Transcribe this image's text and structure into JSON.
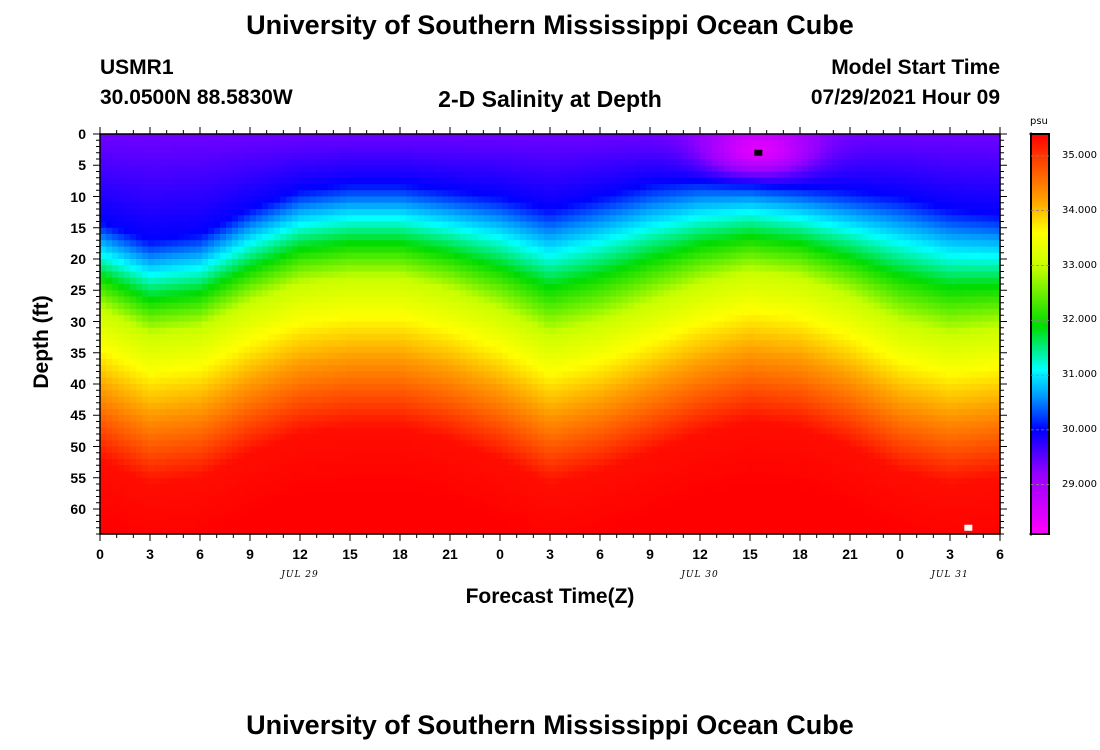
{
  "header": {
    "title_top": "University of Southern Mississippi Ocean Cube",
    "title_bottom": "University of Southern Mississippi Ocean Cube",
    "station": "USMR1",
    "location": "30.0500N  88.5830W",
    "subtitle": "2-D Salinity at Depth",
    "model_label": "Model Start Time",
    "model_time": "07/29/2021 Hour 09"
  },
  "chart_data": {
    "type": "heatmap",
    "title": "2-D Salinity at Depth",
    "xlabel": "Forecast Time(Z)",
    "ylabel": "Depth (ft)",
    "x_range_hours": [
      0,
      54
    ],
    "y_range_ft": [
      0,
      64
    ],
    "x_tick_labels": [
      "0",
      "3",
      "6",
      "9",
      "12",
      "15",
      "18",
      "21",
      "0",
      "3",
      "6",
      "9",
      "12",
      "15",
      "18",
      "21",
      "0",
      "3",
      "6"
    ],
    "y_tick_labels": [
      "0",
      "5",
      "10",
      "15",
      "20",
      "25",
      "30",
      "35",
      "40",
      "45",
      "50",
      "55",
      "60"
    ],
    "y_tick_values": [
      0,
      5,
      10,
      15,
      20,
      25,
      30,
      35,
      40,
      45,
      50,
      55,
      60
    ],
    "date_labels": [
      {
        "label": "JUL 29",
        "hour": 12
      },
      {
        "label": "JUL 30",
        "hour": 36
      },
      {
        "label": "JUL 31",
        "hour": 51
      }
    ],
    "colorbar": {
      "unit": "psu",
      "min": 28.1,
      "max": 35.4,
      "labels": [
        "35.000",
        "34.000",
        "33.000",
        "32.000",
        "31.000",
        "30.000",
        "29.000"
      ],
      "values": [
        35,
        34,
        33,
        32,
        31,
        30,
        29
      ]
    },
    "series": [
      {
        "name": "30.0 psu contour depth (ft)",
        "x": [
          0,
          3,
          6,
          9,
          12,
          15,
          18,
          21,
          24,
          27,
          30,
          33,
          36,
          39,
          42,
          45,
          48,
          51,
          54
        ],
        "values": [
          14,
          17,
          16,
          12,
          9,
          8,
          8,
          9,
          10,
          12,
          10,
          8,
          7,
          7,
          8,
          9,
          10,
          12,
          13
        ]
      },
      {
        "name": "33.0 psu contour depth (ft)",
        "x": [
          0,
          3,
          6,
          9,
          12,
          15,
          18,
          21,
          24,
          27,
          30,
          33,
          36,
          39,
          42,
          45,
          48,
          51,
          54
        ],
        "values": [
          28,
          32,
          31,
          27,
          24,
          23,
          23,
          25,
          28,
          32,
          30,
          27,
          24,
          22,
          23,
          26,
          30,
          32,
          31
        ]
      }
    ],
    "markers": [
      {
        "name": "station marker",
        "hour": 39.5,
        "depth": 3,
        "color": "#000000"
      },
      {
        "name": "white marker",
        "hour": 52.1,
        "depth": 63,
        "color": "#ffffff"
      }
    ]
  }
}
